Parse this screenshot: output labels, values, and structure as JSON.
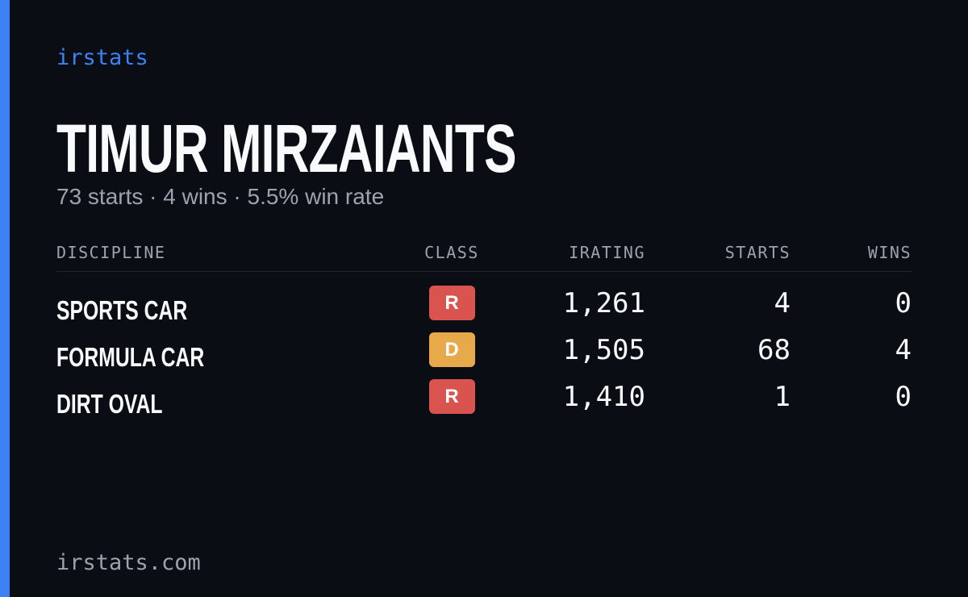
{
  "brand": "irstats",
  "driver_name": "TIMUR MIRZAIANTS",
  "summary": "73 starts · 4 wins · 5.5% win rate",
  "table": {
    "headers": [
      "DISCIPLINE",
      "CLASS",
      "IRATING",
      "STARTS",
      "WINS"
    ],
    "rows": [
      {
        "discipline": "SPORTS CAR",
        "class": "R",
        "class_color": "#d9534f",
        "irating": "1,261",
        "starts": "4",
        "wins": "0"
      },
      {
        "discipline": "FORMULA CAR",
        "class": "D",
        "class_color": "#e8a94a",
        "irating": "1,505",
        "starts": "68",
        "wins": "4"
      },
      {
        "discipline": "DIRT OVAL",
        "class": "R",
        "class_color": "#d9534f",
        "irating": "1,410",
        "starts": "1",
        "wins": "0"
      }
    ]
  },
  "footer": "irstats.com"
}
